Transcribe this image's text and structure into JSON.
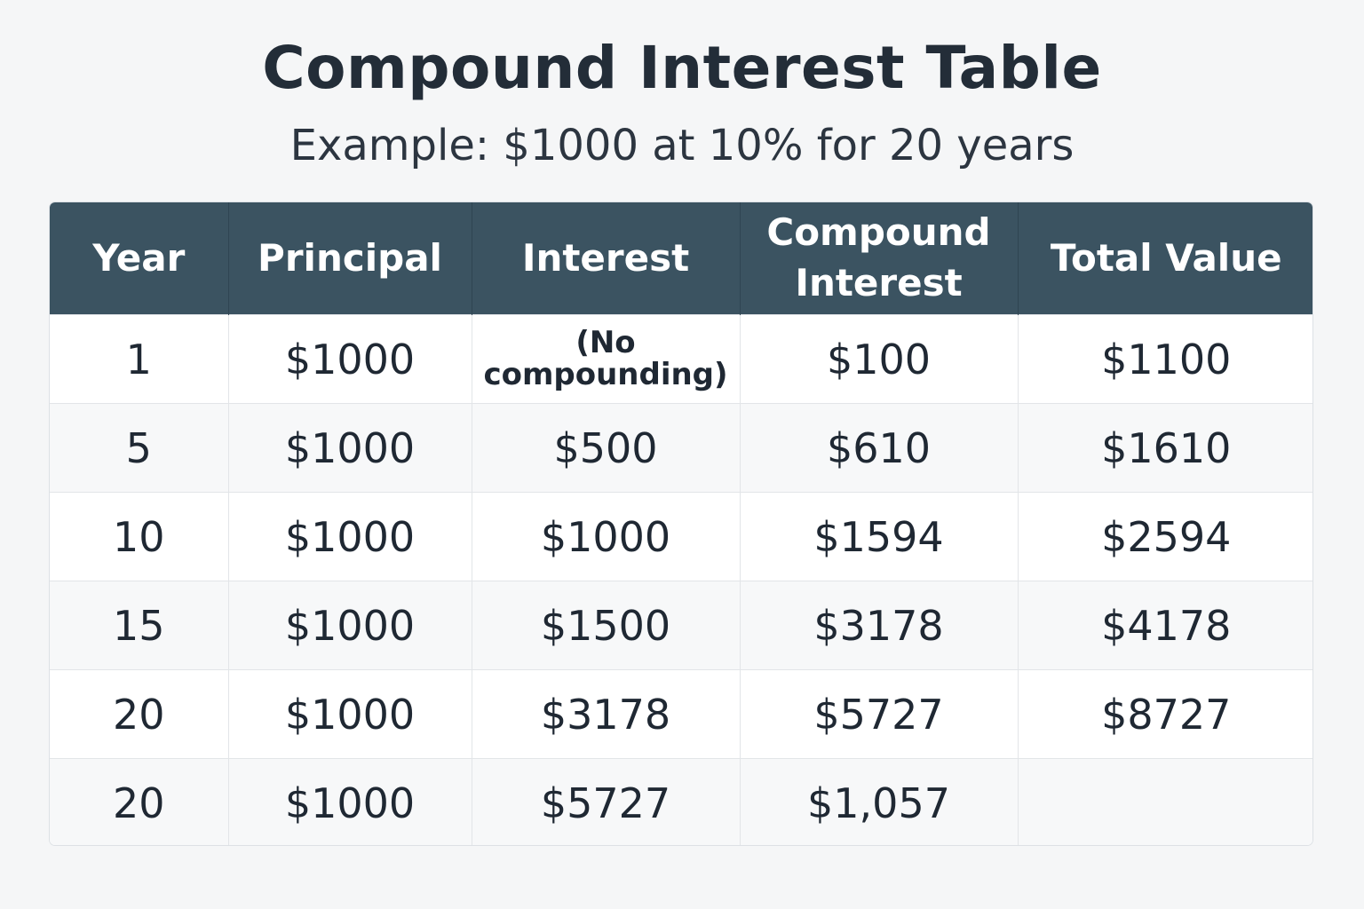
{
  "header": {
    "title": "Compound Interest Table",
    "subtitle": "Example: $1000 at 10% for 20 years"
  },
  "table": {
    "columns": [
      "Year",
      "Principal",
      "Interest",
      "Compound Interest",
      "Total Value"
    ],
    "rows": [
      [
        "1",
        "$1000",
        "(No compounding)",
        "$100",
        "$1100"
      ],
      [
        "5",
        "$1000",
        "$500",
        "$610",
        "$1610"
      ],
      [
        "10",
        "$1000",
        "$1000",
        "$1594",
        "$2594"
      ],
      [
        "15",
        "$1000",
        "$1500",
        "$3178",
        "$4178"
      ],
      [
        "20",
        "$1000",
        "$3178",
        "$5727",
        "$8727"
      ],
      [
        "20",
        "$1000",
        "$5727",
        "$1,057",
        ""
      ]
    ]
  },
  "colors": {
    "header_background": "#3b5361",
    "page_background": "#f5f6f7"
  }
}
